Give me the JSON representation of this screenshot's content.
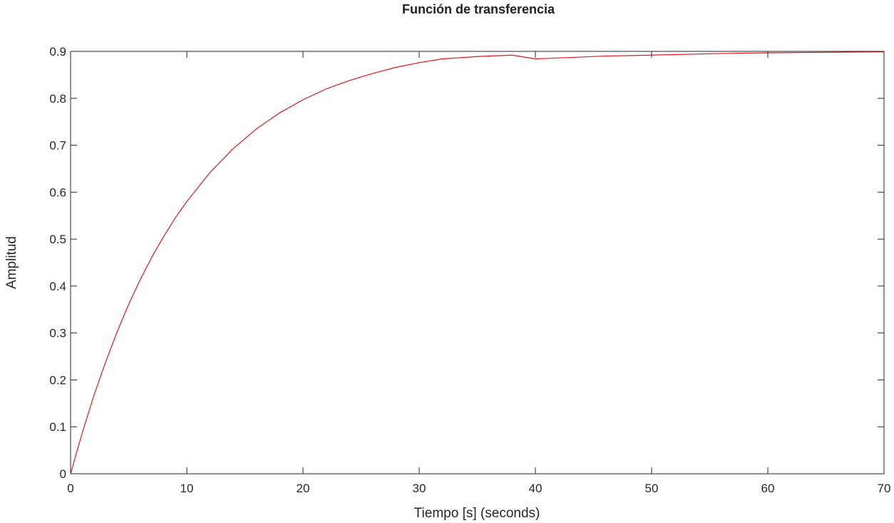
{
  "chart_data": {
    "type": "line",
    "title": "Función de transferencia",
    "xlabel": "Tiempo [s] (seconds)",
    "ylabel": "Amplitud",
    "xlim": [
      0,
      70
    ],
    "ylim": [
      0,
      0.9
    ],
    "xticks": [
      0,
      10,
      20,
      30,
      40,
      50,
      60,
      70
    ],
    "yticks": [
      0,
      0.1,
      0.2,
      0.3,
      0.4,
      0.5,
      0.6,
      0.7,
      0.8,
      0.9
    ],
    "xtick_labels": [
      "0",
      "10",
      "20",
      "30",
      "40",
      "50",
      "60",
      "70"
    ],
    "ytick_labels": [
      "0",
      "0.1",
      "0.2",
      "0.3",
      "0.4",
      "0.5",
      "0.6",
      "0.7",
      "0.8",
      "0.9"
    ],
    "grid": false,
    "reference_line": {
      "y": 0.9,
      "style": "dotted",
      "color": "#555555"
    },
    "series": [
      {
        "color": "#e8141c",
        "x": [
          0,
          1,
          2,
          3,
          4,
          5,
          6,
          7,
          8,
          9,
          10,
          12,
          14,
          16,
          18,
          20,
          22,
          24,
          26,
          28,
          30,
          32,
          35,
          38,
          40,
          43,
          46,
          50,
          55,
          60,
          65,
          70
        ],
        "y": [
          0,
          0.087,
          0.166,
          0.237,
          0.302,
          0.361,
          0.414,
          0.462,
          0.505,
          0.545,
          0.58,
          0.642,
          0.693,
          0.735,
          0.769,
          0.797,
          0.82,
          0.838,
          0.853,
          0.866,
          0.876,
          0.884,
          0.889,
          0.892,
          0.884,
          0.887,
          0.89,
          0.892,
          0.895,
          0.897,
          0.898,
          0.899
        ]
      }
    ]
  }
}
